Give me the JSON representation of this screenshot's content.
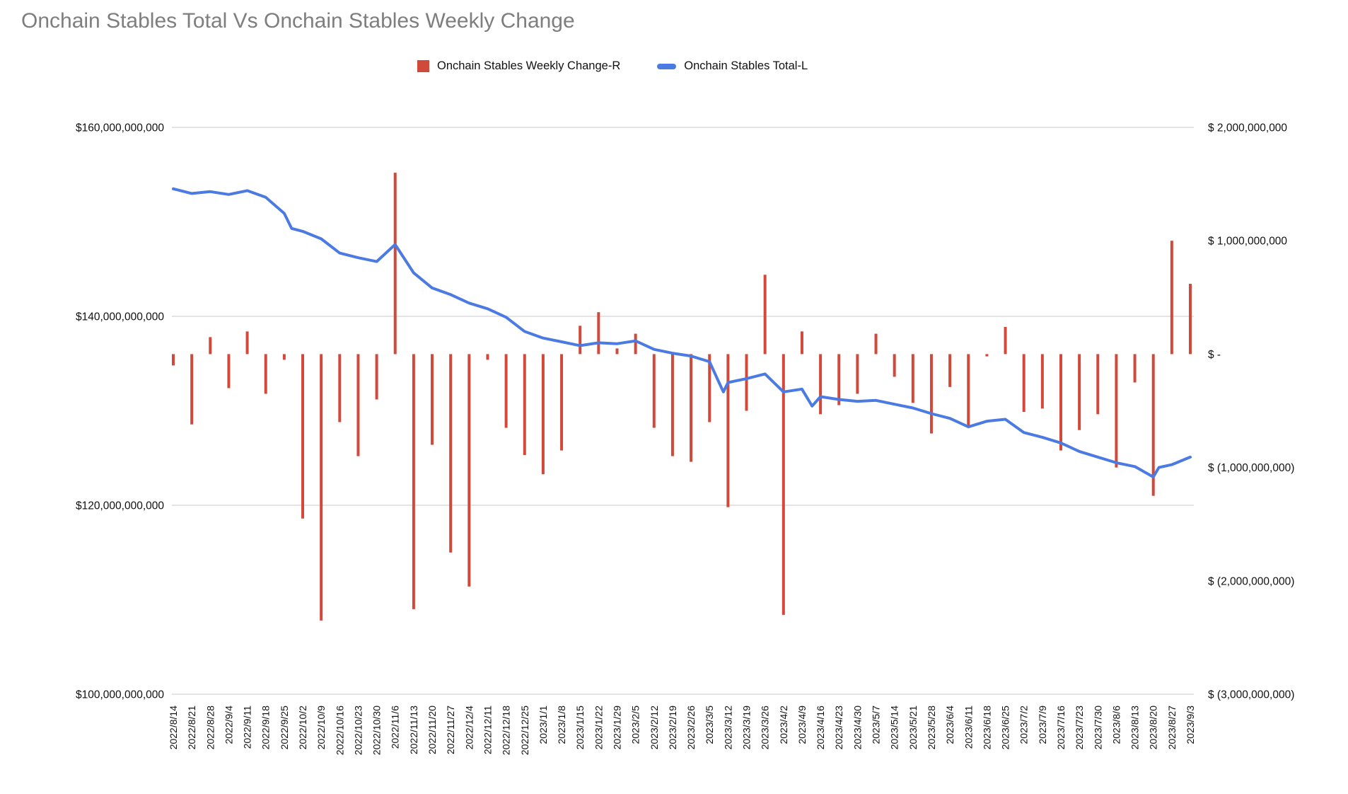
{
  "title": "Onchain Stables Total Vs Onchain Stables Weekly Change",
  "legend": {
    "items": [
      {
        "label": "Onchain Stables Weekly Change-R",
        "swatch": "square",
        "color": "#d1493b"
      },
      {
        "label": "Onchain Stables Total-L",
        "swatch": "line",
        "color": "#4b7ae3"
      }
    ]
  },
  "colors": {
    "bar": "#d1493b",
    "line": "#4b7ae3",
    "gridline": "#dcdcdc",
    "axis_text": "#111111",
    "title_text": "#7e7e7e",
    "background": "#ffffff"
  },
  "chart_data": {
    "type": "bar",
    "subtype": "dual-axis bar + line combo",
    "title": "Onchain Stables Total Vs Onchain Stables Weekly Change",
    "xlabel": "",
    "ylabel": "",
    "grid": "horizontal gridlines only, at left-axis ticks",
    "legend_position": "top-center",
    "categories": [
      "2022/8/14",
      "2022/8/21",
      "2022/8/28",
      "2022/9/4",
      "2022/9/11",
      "2022/9/18",
      "2022/9/25",
      "2022/10/2",
      "2022/10/9",
      "2022/10/16",
      "2022/10/23",
      "2022/10/30",
      "2022/11/6",
      "2022/11/13",
      "2022/11/20",
      "2022/11/27",
      "2022/12/4",
      "2022/12/11",
      "2022/12/18",
      "2022/12/25",
      "2023/1/1",
      "2023/1/8",
      "2023/1/15",
      "2023/1/22",
      "2023/1/29",
      "2023/2/5",
      "2023/2/12",
      "2023/2/19",
      "2023/2/26",
      "2023/3/5",
      "2023/3/12",
      "2023/3/19",
      "2023/3/26",
      "2023/4/2",
      "2023/4/9",
      "2023/4/16",
      "2023/4/23",
      "2023/4/30",
      "2023/5/7",
      "2023/5/14",
      "2023/5/21",
      "2023/5/28",
      "2023/6/4",
      "2023/6/11",
      "2023/6/18",
      "2023/6/25",
      "2023/7/2",
      "2023/7/9",
      "2023/7/16",
      "2023/7/23",
      "2023/7/30",
      "2023/8/6",
      "2023/8/13",
      "2023/8/20",
      "2023/8/27",
      "2023/9/3"
    ],
    "series": [
      {
        "name": "Onchain Stables Weekly Change-R",
        "type": "bar",
        "axis": "right",
        "unit": "USD billions",
        "color": "#d1493b",
        "values": [
          -0.1,
          -0.62,
          0.15,
          -0.3,
          0.2,
          -0.35,
          -0.05,
          -1.45,
          -2.35,
          -0.6,
          -0.9,
          -0.4,
          1.6,
          -2.25,
          -0.8,
          -1.75,
          -2.05,
          -0.05,
          -0.65,
          -0.89,
          -1.06,
          -0.85,
          0.25,
          0.37,
          0.05,
          0.18,
          -0.65,
          -0.9,
          -0.95,
          -0.6,
          -1.35,
          -0.5,
          0.7,
          -2.3,
          0.2,
          -0.53,
          -0.45,
          -0.35,
          0.18,
          -0.2,
          -0.43,
          -0.7,
          -0.29,
          -0.63,
          -0.02,
          0.24,
          -0.51,
          -0.48,
          -0.85,
          -0.67,
          -0.53,
          -1.0,
          -0.25,
          -1.25,
          1.0,
          0.62
        ]
      },
      {
        "name": "Onchain Stables Total-L",
        "type": "line",
        "axis": "left",
        "unit": "USD billions",
        "color": "#4b7ae3",
        "values": [
          153.5,
          153.0,
          153.2,
          152.9,
          153.3,
          152.6,
          150.9,
          149.0,
          148.2,
          146.7,
          146.2,
          145.8,
          147.6,
          144.6,
          143.0,
          142.3,
          141.4,
          140.8,
          139.9,
          138.4,
          137.7,
          137.3,
          136.9,
          137.2,
          137.1,
          137.4,
          136.5,
          136.1,
          135.8,
          135.2,
          133.0,
          133.4,
          133.9,
          132.0,
          132.3,
          131.5,
          131.2,
          131.0,
          131.1,
          130.7,
          130.3,
          129.7,
          129.2,
          128.3,
          128.9,
          129.1,
          127.7,
          127.2,
          126.6,
          125.7,
          125.1,
          124.5,
          124.1,
          123.0,
          124.3,
          125.1
        ],
        "extra_points": [
          {
            "x": 6.4,
            "value": 149.3
          },
          {
            "x": 29.75,
            "value": 132.0
          },
          {
            "x": 34.55,
            "value": 130.5
          },
          {
            "x": 53.3,
            "value": 124.0
          }
        ]
      }
    ],
    "left_axis": {
      "tick_labels": [
        "$160,000,000,000",
        "$140,000,000,000",
        "$120,000,000,000",
        "$100,000,000,000"
      ],
      "tick_values": [
        160,
        140,
        120,
        100
      ],
      "range": [
        100,
        160
      ]
    },
    "right_axis": {
      "tick_labels": [
        "$ 2,000,000,000",
        "$ 1,000,000,000",
        "$ -",
        "$ (1,000,000,000)",
        "$ (2,000,000,000)",
        "$ (3,000,000,000)"
      ],
      "tick_values": [
        2,
        1,
        0,
        -1,
        -2,
        -3
      ],
      "range": [
        -3,
        2
      ]
    }
  }
}
